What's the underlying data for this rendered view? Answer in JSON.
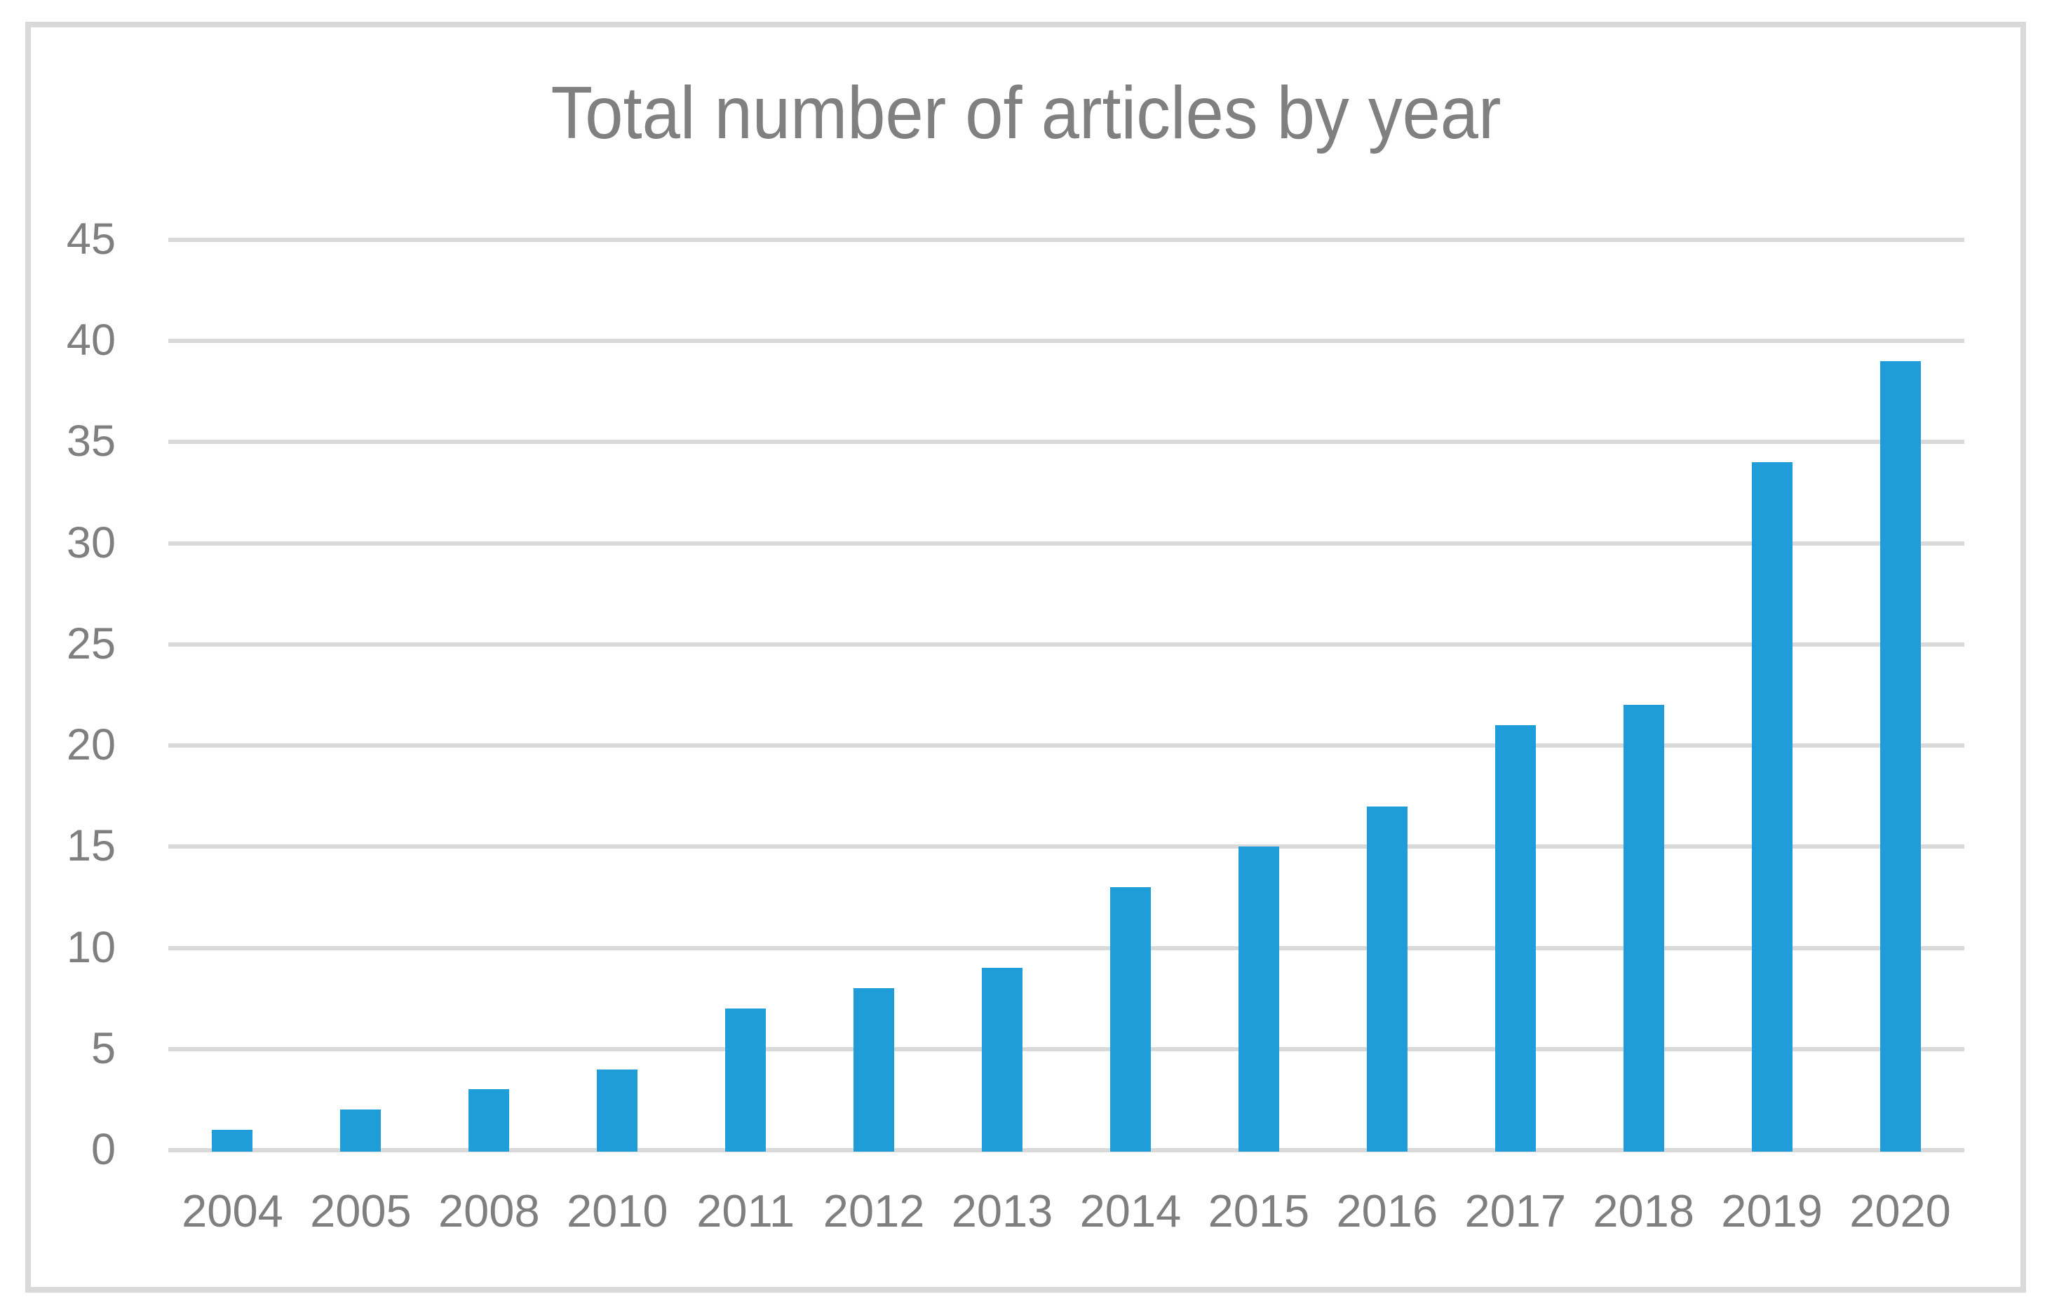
{
  "figure": {
    "background_color": "#ffffff",
    "frame_color": "#d9d9d9"
  },
  "chart_data": {
    "type": "bar",
    "title": "Total number of articles by year",
    "categories": [
      "2004",
      "2005",
      "2008",
      "2010",
      "2011",
      "2012",
      "2013",
      "2014",
      "2015",
      "2016",
      "2017",
      "2018",
      "2019",
      "2020"
    ],
    "values": [
      1,
      2,
      3,
      4,
      7,
      8,
      9,
      13,
      15,
      17,
      21,
      22,
      34,
      39
    ],
    "xlabel": "",
    "ylabel": "",
    "ylim": [
      0,
      45
    ],
    "y_ticks": [
      0,
      5,
      10,
      15,
      20,
      25,
      30,
      35,
      40,
      45
    ],
    "grid": "horizontal",
    "legend": "none",
    "bar_color": "#1f9dd9",
    "gridline_color": "#d9d9d9",
    "title_color": "#808080",
    "tick_label_color": "#7f7f7f"
  }
}
